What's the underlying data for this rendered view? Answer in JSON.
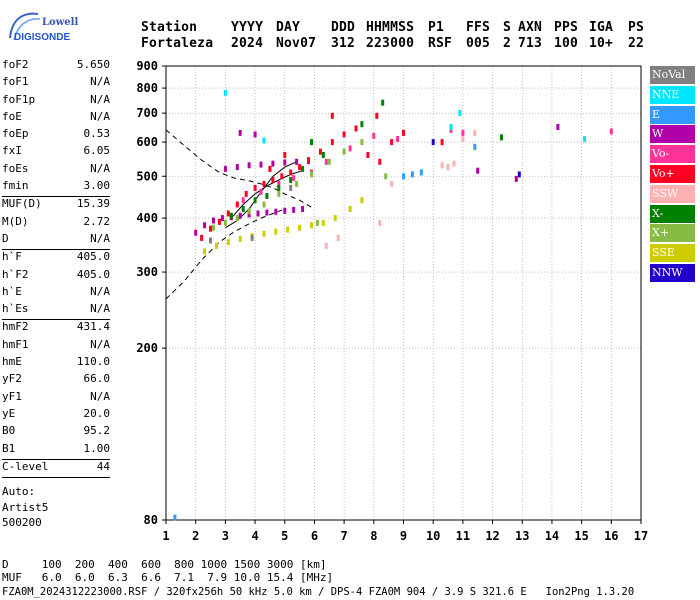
{
  "header": {
    "logo_line1": "Lowell",
    "logo_line2": "DIGISONDE",
    "labels": [
      "Station",
      "YYYY",
      "DAY",
      "DDD",
      "HHMMSS",
      "P1",
      "FFS",
      "S",
      "AXN",
      "PPS",
      "IGA",
      "PS"
    ],
    "values": [
      "Fortaleza",
      "2024",
      "Nov07",
      "312",
      "223000",
      "RSF",
      "005",
      "2",
      "713",
      "100",
      "10+",
      "22"
    ]
  },
  "params": [
    {
      "k": "foF2",
      "v": "5.650"
    },
    {
      "k": "foF1",
      "v": "N/A"
    },
    {
      "k": "foF1p",
      "v": "N/A"
    },
    {
      "k": "foE",
      "v": "N/A"
    },
    {
      "k": "foEp",
      "v": "0.53"
    },
    {
      "k": "fxI",
      "v": "6.05"
    },
    {
      "k": "foEs",
      "v": "N/A"
    },
    {
      "k": "fmin",
      "v": "3.00"
    },
    {
      "sep": true
    },
    {
      "k": "MUF(D)",
      "v": "15.39"
    },
    {
      "k": "M(D)",
      "v": "2.72"
    },
    {
      "k": "D",
      "v": "N/A"
    },
    {
      "sep": true
    },
    {
      "k": "h`F",
      "v": "405.0"
    },
    {
      "k": "h`F2",
      "v": "405.0"
    },
    {
      "k": "h`E",
      "v": "N/A"
    },
    {
      "k": "h`Es",
      "v": "N/A"
    },
    {
      "sep": true
    },
    {
      "k": "hmF2",
      "v": "431.4"
    },
    {
      "k": "hmF1",
      "v": "N/A"
    },
    {
      "k": "hmE",
      "v": "110.0"
    },
    {
      "k": "yF2",
      "v": "66.0"
    },
    {
      "k": "yF1",
      "v": "N/A"
    },
    {
      "k": "yE",
      "v": "20.0"
    },
    {
      "k": "B0",
      "v": "95.2"
    },
    {
      "k": "B1",
      "v": "1.00"
    },
    {
      "sep": true
    },
    {
      "k": "C-level",
      "v": "44"
    },
    {
      "sep": true
    }
  ],
  "autoscaling": [
    "Auto:",
    "Artist5",
    "500200"
  ],
  "legend": [
    {
      "label": "NoVal",
      "color": "#808080"
    },
    {
      "label": "NNE",
      "color": "#00e6ff"
    },
    {
      "label": "E",
      "color": "#3399ff"
    },
    {
      "label": "W",
      "color": "#b000a8"
    },
    {
      "label": "Vo-",
      "color": "#ff3399"
    },
    {
      "label": "Vo+",
      "color": "#ff0022"
    },
    {
      "label": "SSW",
      "color": "#ffb0b0"
    },
    {
      "label": "X-",
      "color": "#008000"
    },
    {
      "label": "X+",
      "color": "#88bb44"
    },
    {
      "label": "SSE",
      "color": "#cccc00"
    },
    {
      "label": "NNW",
      "color": "#2200cc"
    }
  ],
  "bottom": {
    "d_line": "D     100  200  400  600  800 1000 1500 3000 [km]",
    "muf_line": "MUF   6.0  6.0  6.3  6.6  7.1  7.9 10.0 15.4 [MHz]",
    "info_line": "FZA0M_2024312223000.RSF / 320fx256h 50 kHz 5.0 km / DPS-4 FZA0M 904 / 3.9 S 321.6 E   Ion2Png 1.3.20"
  },
  "chart_data": {
    "type": "scatter",
    "title": "",
    "xlabel": "",
    "ylabel": "",
    "xlim": [
      1,
      17
    ],
    "ylim": [
      80,
      900
    ],
    "y_scale": "log",
    "x_ticks": [
      1,
      2,
      3,
      4,
      5,
      6,
      7,
      8,
      9,
      10,
      11,
      12,
      13,
      14,
      15,
      16,
      17
    ],
    "y_ticks": [
      80,
      200,
      300,
      400,
      500,
      600,
      700,
      800,
      900
    ],
    "grid": true,
    "legend_position": "right",
    "series": [
      {
        "name": "W",
        "color": "#b000a8",
        "points": [
          [
            2.0,
            370
          ],
          [
            2.3,
            385
          ],
          [
            2.6,
            395
          ],
          [
            2.9,
            400
          ],
          [
            3.2,
            402
          ],
          [
            3.5,
            405
          ],
          [
            3.8,
            408
          ],
          [
            4.1,
            410
          ],
          [
            4.4,
            412
          ],
          [
            4.7,
            414
          ],
          [
            5.0,
            416
          ],
          [
            5.3,
            418
          ],
          [
            5.6,
            420
          ],
          [
            3.0,
            520
          ],
          [
            3.4,
            525
          ],
          [
            3.8,
            530
          ],
          [
            4.2,
            532
          ],
          [
            4.6,
            535
          ],
          [
            5.0,
            538
          ],
          [
            5.4,
            540
          ],
          [
            5.8,
            542
          ],
          [
            3.5,
            630
          ],
          [
            4.0,
            625
          ],
          [
            14.2,
            650
          ],
          [
            12.8,
            493
          ],
          [
            11.5,
            515
          ]
        ]
      },
      {
        "name": "Vo+",
        "color": "#ff0022",
        "points": [
          [
            2.2,
            360
          ],
          [
            2.5,
            378
          ],
          [
            2.8,
            392
          ],
          [
            3.1,
            410
          ],
          [
            3.4,
            430
          ],
          [
            3.7,
            455
          ],
          [
            4.0,
            470
          ],
          [
            4.3,
            480
          ],
          [
            4.6,
            490
          ],
          [
            4.9,
            500
          ],
          [
            5.2,
            510
          ],
          [
            5.5,
            525
          ],
          [
            5.8,
            545
          ],
          [
            6.2,
            570
          ],
          [
            6.6,
            600
          ],
          [
            7.0,
            625
          ],
          [
            7.4,
            645
          ],
          [
            7.8,
            560
          ],
          [
            8.2,
            540
          ],
          [
            8.6,
            600
          ],
          [
            9.0,
            630
          ],
          [
            8.1,
            690
          ],
          [
            6.6,
            690
          ],
          [
            10.3,
            600
          ],
          [
            4.5,
            520
          ],
          [
            5.0,
            560
          ]
        ]
      },
      {
        "name": "Vo-",
        "color": "#ff3399",
        "points": [
          [
            3.6,
            440
          ],
          [
            4.2,
            460
          ],
          [
            4.8,
            480
          ],
          [
            5.3,
            495
          ],
          [
            5.9,
            510
          ],
          [
            6.4,
            540
          ],
          [
            7.2,
            580
          ],
          [
            8.0,
            620
          ],
          [
            8.8,
            610
          ],
          [
            10.6,
            640
          ],
          [
            16.0,
            635
          ],
          [
            11.0,
            630
          ]
        ]
      },
      {
        "name": "X-",
        "color": "#008000",
        "points": [
          [
            3.2,
            405
          ],
          [
            3.6,
            420
          ],
          [
            4.0,
            440
          ],
          [
            4.4,
            450
          ],
          [
            4.8,
            470
          ],
          [
            5.2,
            490
          ],
          [
            5.6,
            520
          ],
          [
            6.3,
            560
          ],
          [
            7.6,
            660
          ],
          [
            8.3,
            740
          ],
          [
            12.3,
            615
          ],
          [
            5.9,
            600
          ]
        ]
      },
      {
        "name": "X+",
        "color": "#88bb44",
        "points": [
          [
            2.6,
            380
          ],
          [
            3.0,
            390
          ],
          [
            3.4,
            400
          ],
          [
            3.8,
            415
          ],
          [
            4.3,
            430
          ],
          [
            4.8,
            455
          ],
          [
            5.4,
            480
          ],
          [
            5.9,
            505
          ],
          [
            6.5,
            540
          ],
          [
            7.0,
            570
          ],
          [
            7.6,
            600
          ],
          [
            8.4,
            500
          ],
          [
            6.1,
            390
          ]
        ]
      },
      {
        "name": "SSE",
        "color": "#cccc00",
        "points": [
          [
            2.3,
            335
          ],
          [
            2.7,
            345
          ],
          [
            3.1,
            352
          ],
          [
            3.5,
            358
          ],
          [
            3.9,
            363
          ],
          [
            4.3,
            368
          ],
          [
            4.7,
            372
          ],
          [
            5.1,
            376
          ],
          [
            5.5,
            380
          ],
          [
            5.9,
            385
          ],
          [
            6.3,
            390
          ],
          [
            6.7,
            400
          ],
          [
            7.2,
            420
          ],
          [
            7.6,
            440
          ]
        ]
      },
      {
        "name": "SSW",
        "color": "#ffb0b0",
        "points": [
          [
            10.3,
            530
          ],
          [
            10.5,
            525
          ],
          [
            10.7,
            535
          ],
          [
            11.0,
            610
          ],
          [
            11.4,
            630
          ],
          [
            8.2,
            390
          ],
          [
            8.6,
            480
          ],
          [
            6.4,
            345
          ],
          [
            6.8,
            360
          ]
        ]
      },
      {
        "name": "NNE",
        "color": "#00e6ff",
        "points": [
          [
            10.6,
            650
          ],
          [
            15.1,
            610
          ],
          [
            10.9,
            700
          ],
          [
            3.0,
            780
          ],
          [
            4.3,
            605
          ]
        ]
      },
      {
        "name": "E",
        "color": "#3399ff",
        "points": [
          [
            9.0,
            500
          ],
          [
            9.3,
            505
          ],
          [
            9.6,
            510
          ],
          [
            11.4,
            585
          ],
          [
            1.3,
            81
          ]
        ]
      },
      {
        "name": "NNW",
        "color": "#2200cc",
        "points": [
          [
            12.9,
            505
          ],
          [
            10.0,
            600
          ]
        ]
      },
      {
        "name": "NoVal",
        "color": "#808080",
        "points": [
          [
            2.5,
            355
          ],
          [
            3.9,
            360
          ],
          [
            5.2,
            470
          ]
        ]
      }
    ],
    "trace_curves": [
      {
        "style": "dashed",
        "points": [
          [
            1.0,
            640
          ],
          [
            1.6,
            590
          ],
          [
            2.2,
            545
          ],
          [
            2.8,
            510
          ],
          [
            3.3,
            495
          ],
          [
            3.8,
            488
          ],
          [
            4.2,
            480
          ],
          [
            4.6,
            470
          ],
          [
            5.0,
            455
          ],
          [
            5.5,
            440
          ],
          [
            6.0,
            420
          ]
        ]
      },
      {
        "style": "dashed",
        "points": [
          [
            1.0,
            260
          ],
          [
            1.6,
            285
          ],
          [
            2.2,
            320
          ],
          [
            2.8,
            352
          ],
          [
            3.3,
            372
          ],
          [
            3.8,
            388
          ],
          [
            4.2,
            400
          ],
          [
            4.6,
            410
          ],
          [
            5.0,
            420
          ]
        ]
      },
      {
        "style": "solid",
        "points": [
          [
            3.0,
            380
          ],
          [
            3.4,
            395
          ],
          [
            3.8,
            420
          ],
          [
            4.2,
            460
          ],
          [
            4.6,
            500
          ],
          [
            5.0,
            525
          ],
          [
            5.4,
            540
          ]
        ]
      },
      {
        "style": "solid",
        "points": [
          [
            3.2,
            400
          ],
          [
            3.6,
            430
          ],
          [
            4.0,
            455
          ],
          [
            4.4,
            475
          ],
          [
            4.8,
            490
          ],
          [
            5.2,
            505
          ],
          [
            5.6,
            515
          ]
        ]
      }
    ]
  }
}
